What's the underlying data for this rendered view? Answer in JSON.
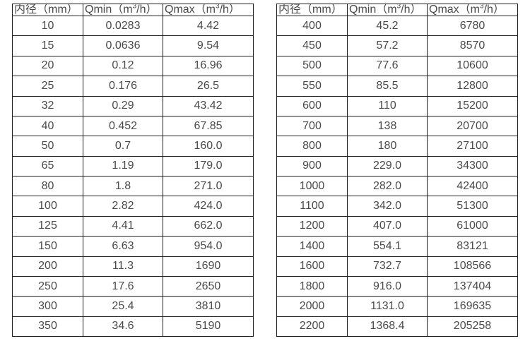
{
  "page": {
    "background": "#ffffff",
    "border_color": "#1f1f1f",
    "text_color": "#4a4a4a"
  },
  "tables": [
    {
      "id": "flow-table-small-diameters",
      "headers": [
        "内径（mm）",
        "Qmin（m³/h）",
        "Qmax（m³/h）"
      ],
      "rows": [
        [
          "10",
          "0.0283",
          "4.42"
        ],
        [
          "15",
          "0.0636",
          "9.54"
        ],
        [
          "20",
          "0.12",
          "16.96"
        ],
        [
          "25",
          "0.176",
          "26.5"
        ],
        [
          "32",
          "0.29",
          "43.42"
        ],
        [
          "40",
          "0.452",
          "67.85"
        ],
        [
          "50",
          "0.7",
          "160.0"
        ],
        [
          "65",
          "1.19",
          "179.0"
        ],
        [
          "80",
          "1.8",
          "271.0"
        ],
        [
          "100",
          "2.82",
          "424.0"
        ],
        [
          "125",
          "4.41",
          "662.0"
        ],
        [
          "150",
          "6.63",
          "954.0"
        ],
        [
          "200",
          "11.3",
          "1690"
        ],
        [
          "250",
          "17.6",
          "2650"
        ],
        [
          "300",
          "25.4",
          "3810"
        ],
        [
          "350",
          "34.6",
          "5190"
        ]
      ]
    },
    {
      "id": "flow-table-large-diameters",
      "headers": [
        "内径（mm）",
        "Qmin（m³/h）",
        "Qmax（m³/h）"
      ],
      "rows": [
        [
          "400",
          "45.2",
          "6780"
        ],
        [
          "450",
          "57.2",
          "8570"
        ],
        [
          "500",
          "77.6",
          "10600"
        ],
        [
          "550",
          "85.5",
          "12800"
        ],
        [
          "600",
          "110",
          "15200"
        ],
        [
          "700",
          "138",
          "20700"
        ],
        [
          "800",
          "180",
          "27100"
        ],
        [
          "900",
          "229.0",
          "34300"
        ],
        [
          "1000",
          "282.0",
          "42400"
        ],
        [
          "1100",
          "342.0",
          "51300"
        ],
        [
          "1200",
          "407.0",
          "61000"
        ],
        [
          "1400",
          "554.1",
          "83121"
        ],
        [
          "1600",
          "732.7",
          "108566"
        ],
        [
          "1800",
          "916.0",
          "137404"
        ],
        [
          "2000",
          "1131.0",
          "169635"
        ],
        [
          "2200",
          "1368.4",
          "205258"
        ]
      ]
    }
  ]
}
